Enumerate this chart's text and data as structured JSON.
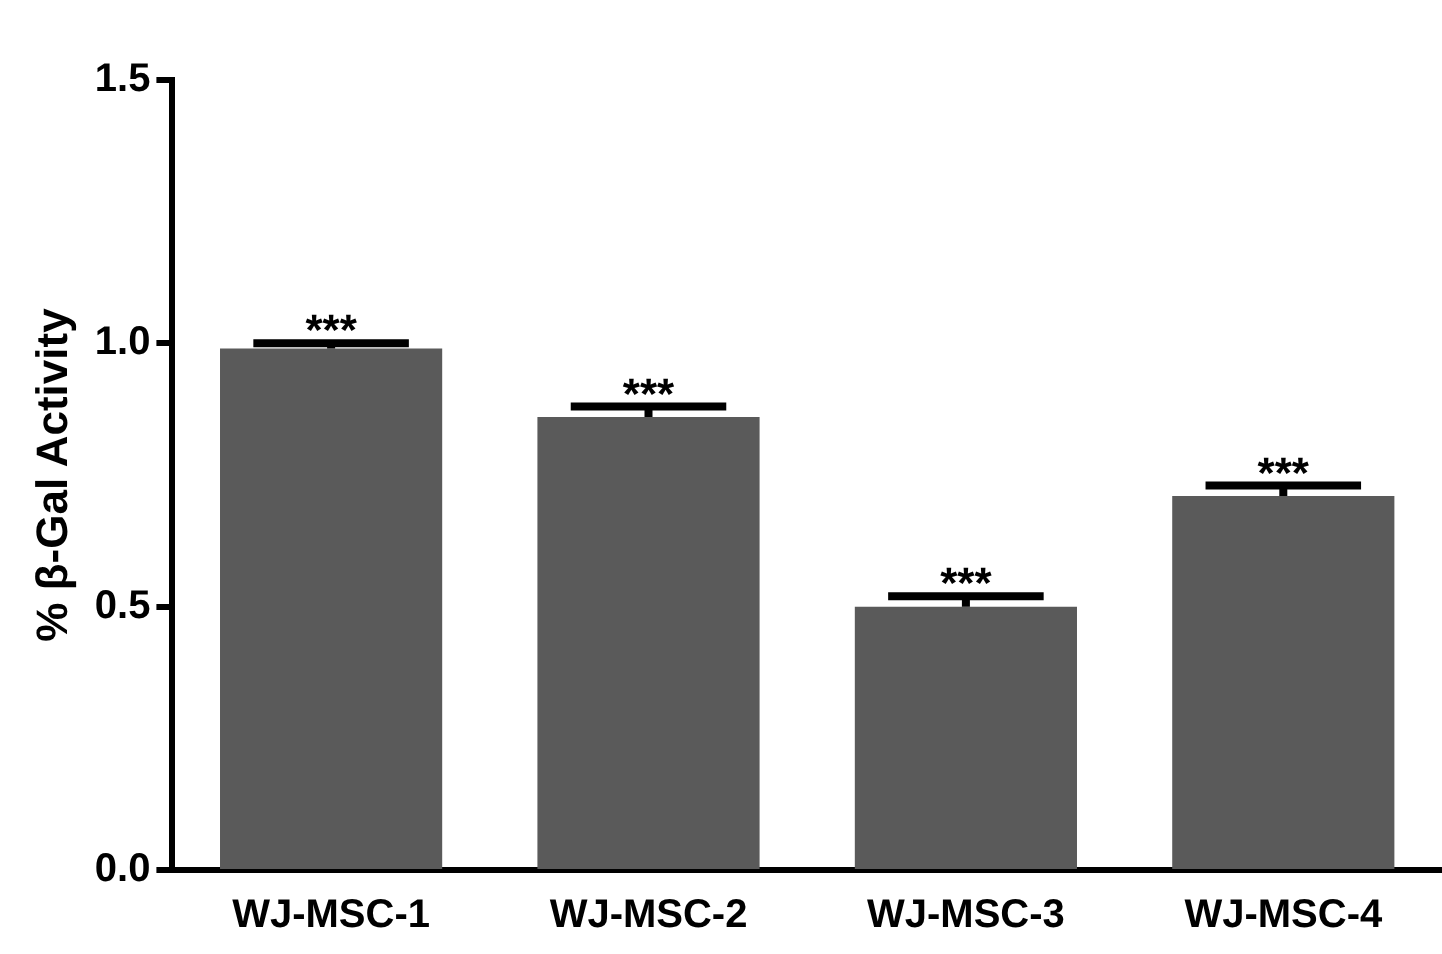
{
  "chart_data": {
    "type": "bar",
    "ylabel": "% β-Gal Activity",
    "categories": [
      "WJ-MSC-1",
      "WJ-MSC-2",
      "WJ-MSC-3",
      "WJ-MSC-4"
    ],
    "values": [
      0.99,
      0.86,
      0.5,
      0.71
    ],
    "errors": [
      [
        0.99,
        1.0
      ],
      [
        0.86,
        0.88
      ],
      [
        0.5,
        0.52
      ],
      [
        0.71,
        0.73
      ]
    ],
    "color": "#5a5a5a",
    "ylim": [
      0,
      1.5
    ],
    "yticks": [
      {
        "value": 0,
        "label": "0.0"
      },
      {
        "value": 0.5,
        "label": "0.5"
      },
      {
        "value": 1,
        "label": "1.0"
      },
      {
        "value": 1.5,
        "label": "1.5"
      }
    ],
    "grid": false,
    "legend": false,
    "annotations": [
      {
        "text": "***",
        "x": "WJ-MSC-1",
        "y": 1.0
      },
      {
        "text": "***",
        "x": "WJ-MSC-2",
        "y": 0.88
      },
      {
        "text": "***",
        "x": "WJ-MSC-3",
        "y": 0.52
      },
      {
        "text": "***",
        "x": "WJ-MSC-4",
        "y": 0.73
      }
    ]
  }
}
